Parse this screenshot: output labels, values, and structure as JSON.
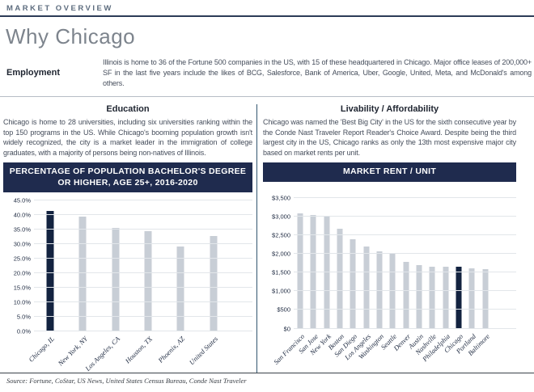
{
  "header": {
    "eyebrow": "MARKET OVERVIEW",
    "title": "Why Chicago"
  },
  "employment": {
    "label": "Employment",
    "text": "Illinois is home to 36 of the Fortune 500 companies in the US, with 15 of these headquartered in Chicago. Major office leases of 200,000+ SF in the last five years include the likes of BCG, Salesforce, Bank of America, Uber, Google, United, Meta, and McDonald's among others."
  },
  "education": {
    "heading": "Education",
    "text": "Chicago is home to 28 universities, including six universities ranking within the top 150 programs in the US. While Chicago's booming population growth isn't widely recognized, the city is a market leader in the immigration of college graduates, with a majority of persons being non-natives of Illinois."
  },
  "livability": {
    "heading": "Livability / Affordability",
    "text": "Chicago was named the 'Best Big City' in the US for the sixth consecutive year by the Conde Nast Traveler Report Reader's Choice Award. Despite being the third largest city in the US, Chicago ranks as only the 13th most expensive major city based on market rents per unit."
  },
  "footer": {
    "source": "Source: Fortune, CoStar, US News, United States Census Bureau, Conde Nast Traveler"
  },
  "colors": {
    "navy_banner": "#1f2b4e",
    "bar_default": "#c8ced6",
    "bar_highlight": "#132340",
    "divider": "#33566f",
    "gridline": "#e2e6ea"
  },
  "chart_data": [
    {
      "type": "bar",
      "title": "PERCENTAGE OF POPULATION BACHELOR'S DEGREE OR HIGHER, AGE 25+, 2016-2020",
      "categories": [
        "Chicago, IL",
        "New York, NY",
        "Los Angeles, CA",
        "Houston, TX",
        "Phoenix, AZ",
        "United States"
      ],
      "values": [
        41.5,
        39.5,
        35.5,
        34.4,
        29.1,
        32.8
      ],
      "highlight_index": 0,
      "ylabel": "",
      "xlabel": "",
      "ylim": [
        0,
        45
      ],
      "ytick_step": 5,
      "ytick_format": "percent",
      "grid": true,
      "legend": false
    },
    {
      "type": "bar",
      "title": "MARKET RENT / UNIT",
      "categories": [
        "San Francisco",
        "San Jose",
        "New York",
        "Boston",
        "San Diego",
        "Los Angeles",
        "Washington",
        "Seattle",
        "Denver",
        "Austin",
        "Nashville",
        "Philadelphia",
        "Chicago",
        "Portland",
        "Baltimore"
      ],
      "values": [
        3080,
        3030,
        3020,
        2680,
        2390,
        2200,
        2070,
        2000,
        1790,
        1690,
        1660,
        1655,
        1650,
        1620,
        1580
      ],
      "highlight_index": 12,
      "ylabel": "",
      "xlabel": "",
      "ylim": [
        0,
        3500
      ],
      "ytick_step": 500,
      "ytick_format": "dollar",
      "grid": true,
      "legend": false
    }
  ]
}
